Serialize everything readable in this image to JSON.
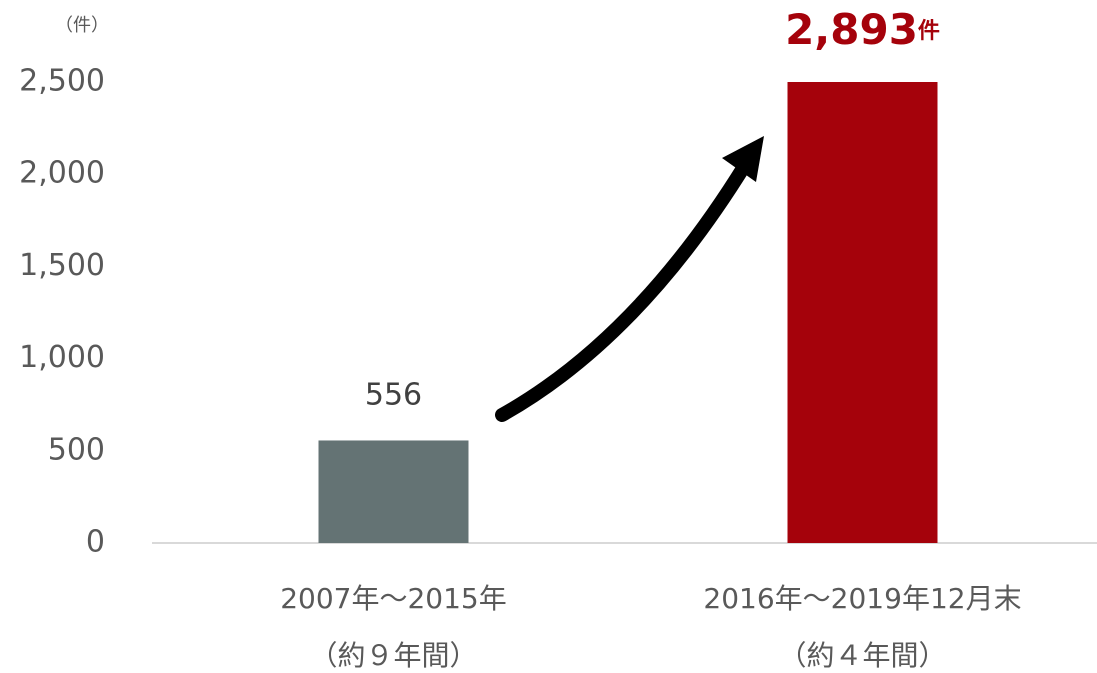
{
  "chart_data": {
    "type": "bar",
    "y_axis_label": "（件）",
    "categories": [
      "2007年～2015年",
      "2016年～2019年12月末"
    ],
    "category_notes": [
      "（約９年間）",
      "（約４年間）"
    ],
    "values": [
      556,
      2893
    ],
    "value_labels": [
      "556",
      "2,893"
    ],
    "value_label_unit": [
      null,
      "件"
    ],
    "colors": [
      "#647374",
      "#a5020b"
    ],
    "value_label_colors": [
      "#404040",
      "#a5020b"
    ],
    "ylim": [
      0,
      2500
    ],
    "yticks": [
      0,
      500,
      {
        "value": 1000,
        "label": "1,000"
      },
      {
        "value": 1500,
        "label": "1,500"
      },
      {
        "value": 2000,
        "label": "2,000"
      },
      {
        "value": 2500,
        "label": "2,500"
      }
    ],
    "grid": false
  }
}
